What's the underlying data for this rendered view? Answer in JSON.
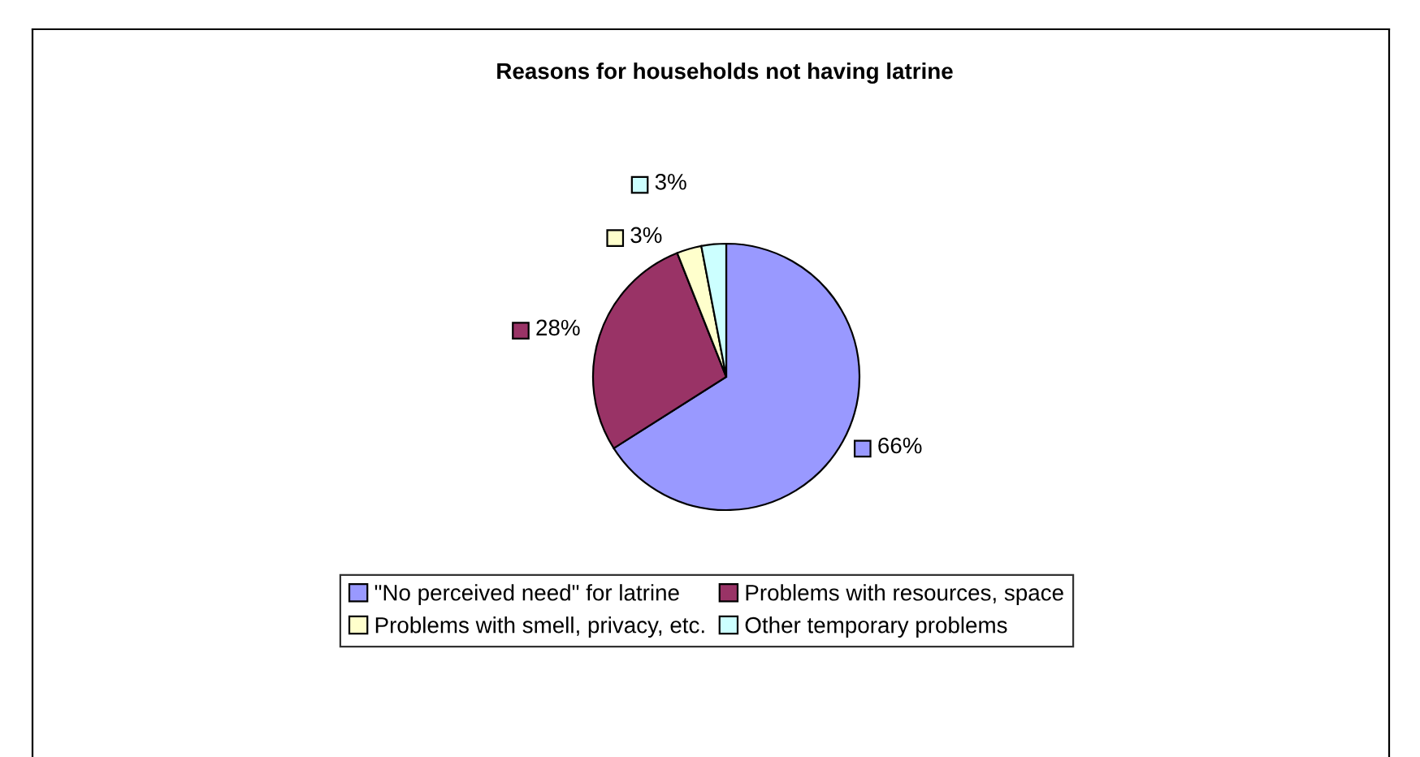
{
  "chart_data": {
    "type": "pie",
    "title": "Reasons for households not having latrine",
    "categories": [
      "\"No perceived need\" for latrine",
      "Problems with resources, space",
      "Problems with smell, privacy, etc.",
      "Other temporary problems"
    ],
    "values": [
      66,
      28,
      3,
      3
    ],
    "colors": [
      "#9999ff",
      "#993366",
      "#ffffcc",
      "#ccffff"
    ],
    "value_labels": [
      "66%",
      "28%",
      "3%",
      "3%"
    ],
    "legend": "bottom"
  }
}
